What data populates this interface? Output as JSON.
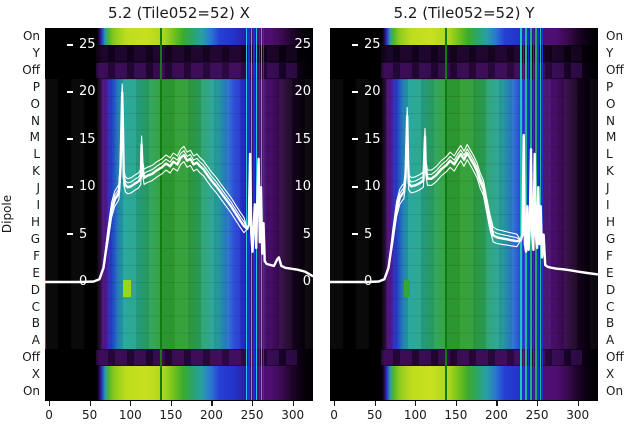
{
  "titles": {
    "left": "5.2 (Tile052=52) X",
    "right": "5.2 (Tile052=52) Y"
  },
  "ylabel": "Dipole",
  "dipole_labels": [
    "On",
    "Y",
    "Off",
    "P",
    "O",
    "N",
    "M",
    "L",
    "K",
    "J",
    "I",
    "H",
    "G",
    "F",
    "E",
    "D",
    "C",
    "B",
    "A",
    "Off",
    "X",
    "On"
  ],
  "x_ticks": [
    0,
    50,
    100,
    150,
    200,
    250,
    300
  ],
  "inner_y_ticks": [
    25,
    20,
    15,
    10,
    5,
    0
  ],
  "colors": {
    "curve": "#ffffff",
    "text": "#1a1a1a",
    "background": "#ffffff",
    "inner_axis_text": "#ffffff"
  },
  "heatmap_bands": {
    "bright": [
      [
        -5,
        "#000000"
      ],
      [
        59,
        "#000000"
      ],
      [
        62,
        "#2a0a55"
      ],
      [
        65,
        "#2636c8"
      ],
      [
        69,
        "#2d9aaa"
      ],
      [
        73,
        "#4cb431"
      ],
      [
        80,
        "#8aca1e"
      ],
      [
        95,
        "#bedd1e"
      ],
      [
        120,
        "#c8e01f"
      ],
      [
        142,
        "#aad51e"
      ],
      [
        155,
        "#6cbf1f"
      ],
      [
        165,
        "#3cab2e"
      ],
      [
        176,
        "#2ba566"
      ],
      [
        188,
        "#27a0a4"
      ],
      [
        199,
        "#2b77d0"
      ],
      [
        210,
        "#2640d2"
      ],
      [
        228,
        "#2233c8"
      ],
      [
        240,
        "#2a21a8"
      ],
      [
        250,
        "#3a1470"
      ],
      [
        258,
        "#4c0f72"
      ],
      [
        272,
        "#500e74"
      ],
      [
        286,
        "#3c0a54"
      ],
      [
        300,
        "#1e0428"
      ],
      [
        312,
        "#0a0010"
      ],
      [
        325,
        "#000000"
      ]
    ],
    "dark": [
      [
        -5,
        "#000000"
      ],
      [
        60,
        "#000000"
      ],
      [
        66,
        "#10021a"
      ],
      [
        150,
        "#13031d"
      ],
      [
        250,
        "#170322"
      ],
      [
        292,
        "#08000e"
      ],
      [
        325,
        "#000000"
      ]
    ],
    "offrow": [
      [
        -5,
        "#000000"
      ],
      [
        58,
        "#000000"
      ],
      [
        62,
        "#26063a"
      ],
      [
        130,
        "#1e052e"
      ],
      [
        190,
        "#280739"
      ],
      [
        252,
        "#2f0946"
      ],
      [
        296,
        "#120120"
      ],
      [
        325,
        "#000000"
      ]
    ],
    "main": [
      [
        -5,
        "#000000"
      ],
      [
        59,
        "#000000"
      ],
      [
        63,
        "#1c0430"
      ],
      [
        66,
        "#4f0e78"
      ],
      [
        70,
        "#440d86"
      ],
      [
        74,
        "#2b2bbe"
      ],
      [
        79,
        "#2452d2"
      ],
      [
        85,
        "#2787c2"
      ],
      [
        92,
        "#22a49c"
      ],
      [
        108,
        "#25a489"
      ],
      [
        124,
        "#2ba35c"
      ],
      [
        138,
        "#2e9f3a"
      ],
      [
        152,
        "#2f9e2f"
      ],
      [
        168,
        "#2f9e36"
      ],
      [
        182,
        "#2da153"
      ],
      [
        196,
        "#28a387"
      ],
      [
        208,
        "#27a2a5"
      ],
      [
        218,
        "#2a7fcc"
      ],
      [
        228,
        "#2647d6"
      ],
      [
        238,
        "#2233cc"
      ],
      [
        245,
        "#31199a"
      ],
      [
        252,
        "#3a1470"
      ],
      [
        262,
        "#43106e"
      ],
      [
        272,
        "#4c0f6e"
      ],
      [
        282,
        "#3a0a52"
      ],
      [
        295,
        "#1e0429"
      ],
      [
        310,
        "#0b0110"
      ],
      [
        325,
        "#000000"
      ]
    ]
  },
  "chart_data": [
    {
      "type": "heatmap",
      "title": "5.2 (Tile052=52) X",
      "x_range": [
        -5,
        325
      ],
      "x_ticks": [
        0,
        50,
        100,
        150,
        200,
        250,
        300
      ],
      "row_categories": [
        "On",
        "Y",
        "Off",
        "P",
        "O",
        "N",
        "M",
        "L",
        "K",
        "J",
        "I",
        "H",
        "G",
        "F",
        "E",
        "D",
        "C",
        "B",
        "A",
        "Off",
        "X",
        "On"
      ],
      "row_bands": [
        "bright",
        "dark",
        "offrow",
        "main",
        "offrow",
        "bright"
      ],
      "row_spans": [
        1,
        1,
        1,
        16,
        1,
        2
      ],
      "inner_axis": {
        "ticks": [
          25,
          20,
          15,
          10,
          5,
          0
        ],
        "left_labels": true,
        "right_labels": true
      },
      "stripes": [
        {
          "x": -5,
          "w": 1.6,
          "c": "#cc2418",
          "scope": "main"
        },
        {
          "x": 136.5,
          "w": 2,
          "c": "#117a11",
          "scope": "all"
        },
        {
          "x": 242.5,
          "w": 1.0,
          "c": "#24c8dc",
          "scope": "all"
        },
        {
          "x": 245.0,
          "w": 2.2,
          "c": "#1732d8",
          "scope": "all"
        },
        {
          "x": 248.5,
          "w": 1.2,
          "c": "#20bcdc",
          "scope": "all"
        },
        {
          "x": 251.5,
          "w": 2.2,
          "c": "#1732d8",
          "scope": "all"
        },
        {
          "x": 255.0,
          "w": 1.2,
          "c": "#24c4dc",
          "scope": "all"
        },
        {
          "x": 258.0,
          "w": 1.8,
          "c": "#1732d8",
          "scope": "all"
        },
        {
          "x": 261.0,
          "w": 1.0,
          "c": "#20b4d4",
          "scope": "all"
        },
        {
          "x": 263.5,
          "w": 1.2,
          "c": "#2233cc",
          "scope": "all"
        }
      ],
      "marker": {
        "x": 91,
        "w": 10,
        "row_start": 14.9,
        "row_end": 15.9,
        "color": "#9cd41e"
      },
      "overlay_line": {
        "y_range": [
          0,
          25
        ],
        "bundle_offsets": [
          0,
          0.9,
          -0.7,
          0.45
        ],
        "bundle_x_range": [
          63,
          240
        ],
        "points": [
          [
            -5,
            0
          ],
          [
            40,
            0
          ],
          [
            55,
            0.05
          ],
          [
            62,
            0.3
          ],
          [
            67,
            1.5
          ],
          [
            72,
            4.5
          ],
          [
            77,
            7.5
          ],
          [
            81,
            8.7
          ],
          [
            84,
            9.1
          ],
          [
            86,
            9.4
          ],
          [
            88,
            12
          ],
          [
            90,
            20
          ],
          [
            91,
            16
          ],
          [
            92,
            11
          ],
          [
            94,
            10.2
          ],
          [
            97,
            10
          ],
          [
            101,
            10.1
          ],
          [
            106,
            10.4
          ],
          [
            110,
            10.6
          ],
          [
            113,
            11
          ],
          [
            114,
            14.5
          ],
          [
            115,
            12
          ],
          [
            117,
            11
          ],
          [
            121,
            11.2
          ],
          [
            127,
            11.4
          ],
          [
            133,
            11.8
          ],
          [
            139,
            12.1
          ],
          [
            144,
            12.5
          ],
          [
            149,
            12.2
          ],
          [
            153,
            12.7
          ],
          [
            158,
            12.4
          ],
          [
            162,
            13.1
          ],
          [
            166,
            13.4
          ],
          [
            170,
            12.8
          ],
          [
            174,
            13
          ],
          [
            178,
            12.4
          ],
          [
            182,
            12.6
          ],
          [
            186,
            12.2
          ],
          [
            190,
            11.9
          ],
          [
            195,
            11.3
          ],
          [
            200,
            10.7
          ],
          [
            206,
            10.1
          ],
          [
            212,
            9.4
          ],
          [
            218,
            8.7
          ],
          [
            224,
            8
          ],
          [
            230,
            7.2
          ],
          [
            236,
            6.4
          ],
          [
            240,
            5.9
          ],
          [
            244,
            5.6
          ],
          [
            246,
            6
          ],
          [
            247.5,
            13.5
          ],
          [
            249,
            5
          ],
          [
            250.5,
            3.2
          ],
          [
            252,
            6
          ],
          [
            253.5,
            8.2
          ],
          [
            255,
            3.6
          ],
          [
            256.5,
            9
          ],
          [
            258,
            13
          ],
          [
            259.5,
            4.2
          ],
          [
            261,
            10
          ],
          [
            262.5,
            3
          ],
          [
            264,
            6.2
          ],
          [
            265.5,
            2.2
          ],
          [
            268,
            1.9
          ],
          [
            272,
            1.8
          ],
          [
            277,
            1.7
          ],
          [
            281,
            2.4
          ],
          [
            283,
            2.6
          ],
          [
            286,
            1.7
          ],
          [
            291,
            1.5
          ],
          [
            298,
            1.4
          ],
          [
            306,
            1.3
          ],
          [
            315,
            1.1
          ],
          [
            325,
            0.6
          ]
        ]
      }
    },
    {
      "type": "heatmap",
      "title": "5.2 (Tile052=52) Y",
      "x_range": [
        -5,
        325
      ],
      "x_ticks": [
        0,
        50,
        100,
        150,
        200,
        250,
        300
      ],
      "row_categories": [
        "On",
        "Y",
        "Off",
        "P",
        "O",
        "N",
        "M",
        "L",
        "K",
        "J",
        "I",
        "H",
        "G",
        "F",
        "E",
        "D",
        "C",
        "B",
        "A",
        "Off",
        "X",
        "On"
      ],
      "row_bands": [
        "bright",
        "dark",
        "offrow",
        "main",
        "offrow",
        "bright"
      ],
      "row_spans": [
        1,
        1,
        1,
        16,
        1,
        2
      ],
      "inner_axis": {
        "ticks": [
          25,
          20,
          15,
          10,
          5,
          0
        ],
        "left_labels": true,
        "right_labels": false
      },
      "stripes": [
        {
          "x": 136.5,
          "w": 2,
          "c": "#117a11",
          "scope": "all"
        },
        {
          "x": 229.5,
          "w": 1.5,
          "c": "#1cc8b4",
          "scope": "all"
        },
        {
          "x": 232.5,
          "w": 2.0,
          "c": "#1732d8",
          "scope": "all"
        },
        {
          "x": 235.5,
          "w": 1.6,
          "c": "#1cb896",
          "scope": "all"
        },
        {
          "x": 238.5,
          "w": 2.0,
          "c": "#1732d8",
          "scope": "all"
        },
        {
          "x": 241.5,
          "w": 2.0,
          "c": "#21b083",
          "scope": "all"
        },
        {
          "x": 244.5,
          "w": 1.8,
          "c": "#1732d8",
          "scope": "all"
        },
        {
          "x": 247.5,
          "w": 2.0,
          "c": "#1fa763",
          "scope": "all"
        },
        {
          "x": 250.5,
          "w": 1.6,
          "c": "#1732d8",
          "scope": "all"
        },
        {
          "x": 253.5,
          "w": 1.4,
          "c": "#1cc0a8",
          "scope": "all"
        },
        {
          "x": 256.5,
          "w": 1.0,
          "c": "#2233cc",
          "scope": "all"
        }
      ],
      "marker": {
        "x": 86,
        "w": 8,
        "row_start": 14.9,
        "row_end": 15.9,
        "color": "#34a832"
      },
      "overlay_line": {
        "y_range": [
          0,
          25
        ],
        "bundle_offsets": [
          0,
          0.9,
          -0.7,
          0.45
        ],
        "bundle_x_range": [
          63,
          228
        ],
        "points": [
          [
            -5,
            0
          ],
          [
            40,
            0
          ],
          [
            55,
            0.05
          ],
          [
            62,
            0.3
          ],
          [
            67,
            1.5
          ],
          [
            72,
            4.5
          ],
          [
            77,
            7.6
          ],
          [
            81,
            8.9
          ],
          [
            84,
            9.3
          ],
          [
            86,
            9.5
          ],
          [
            88,
            11
          ],
          [
            90,
            17.5
          ],
          [
            91,
            13
          ],
          [
            92,
            10.4
          ],
          [
            95,
            10.1
          ],
          [
            100,
            10.2
          ],
          [
            105,
            10.4
          ],
          [
            110,
            10.7
          ],
          [
            112,
            15.3
          ],
          [
            113,
            12
          ],
          [
            115,
            10.9
          ],
          [
            120,
            10.9
          ],
          [
            126,
            11.3
          ],
          [
            132,
            11.9
          ],
          [
            138,
            12.3
          ],
          [
            143,
            12.8
          ],
          [
            148,
            12.4
          ],
          [
            152,
            13
          ],
          [
            156,
            13.5
          ],
          [
            160,
            12.9
          ],
          [
            164,
            13.6
          ],
          [
            168,
            13
          ],
          [
            172,
            12.4
          ],
          [
            176,
            11.7
          ],
          [
            180,
            10.6
          ],
          [
            184,
            9.8
          ],
          [
            188,
            8
          ],
          [
            192,
            6.2
          ],
          [
            196,
            4.9
          ],
          [
            201,
            4.7
          ],
          [
            207,
            4.6
          ],
          [
            213,
            4.5
          ],
          [
            219,
            4.4
          ],
          [
            225,
            4.3
          ],
          [
            230,
            4.4
          ],
          [
            232,
            5
          ],
          [
            233.5,
            15.5
          ],
          [
            235,
            4
          ],
          [
            236.5,
            3.2
          ],
          [
            238,
            8
          ],
          [
            239.5,
            3.4
          ],
          [
            241,
            6
          ],
          [
            242.5,
            14
          ],
          [
            244,
            5
          ],
          [
            245.5,
            3.4
          ],
          [
            247,
            13.5
          ],
          [
            248.5,
            5
          ],
          [
            250,
            3.6
          ],
          [
            251.5,
            10
          ],
          [
            253,
            4
          ],
          [
            254.5,
            8
          ],
          [
            256,
            2.6
          ],
          [
            258,
            5
          ],
          [
            260,
            1.8
          ],
          [
            263,
            1.6
          ],
          [
            268,
            1.5
          ],
          [
            274,
            1.4
          ],
          [
            281,
            1.35
          ],
          [
            290,
            1.25
          ],
          [
            300,
            1.1
          ],
          [
            312,
            0.95
          ],
          [
            325,
            0.8
          ]
        ]
      }
    }
  ]
}
